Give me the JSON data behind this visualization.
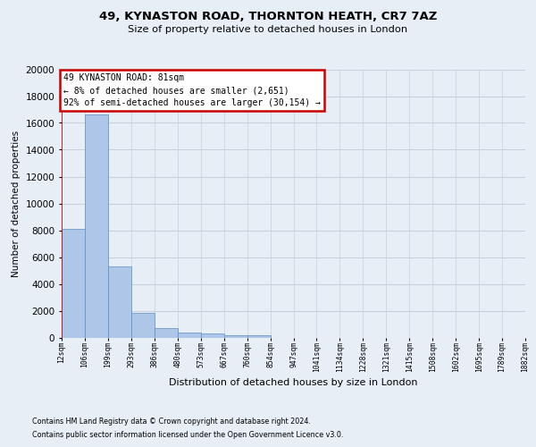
{
  "title_line1": "49, KYNASTON ROAD, THORNTON HEATH, CR7 7AZ",
  "title_line2": "Size of property relative to detached houses in London",
  "xlabel": "Distribution of detached houses by size in London",
  "ylabel": "Number of detached properties",
  "footer_line1": "Contains HM Land Registry data © Crown copyright and database right 2024.",
  "footer_line2": "Contains public sector information licensed under the Open Government Licence v3.0.",
  "annotation_line1": "49 KYNASTON ROAD: 81sqm",
  "annotation_line2": "← 8% of detached houses are smaller (2,651)",
  "annotation_line3": "92% of semi-detached houses are larger (30,154) →",
  "bar_values": [
    8100,
    16600,
    5300,
    1850,
    700,
    380,
    280,
    200,
    160,
    0,
    0,
    0,
    0,
    0,
    0,
    0,
    0,
    0,
    0,
    0
  ],
  "bin_labels": [
    "12sqm",
    "106sqm",
    "199sqm",
    "293sqm",
    "386sqm",
    "480sqm",
    "573sqm",
    "667sqm",
    "760sqm",
    "854sqm",
    "947sqm",
    "1041sqm",
    "1134sqm",
    "1228sqm",
    "1321sqm",
    "1415sqm",
    "1508sqm",
    "1602sqm",
    "1695sqm",
    "1789sqm",
    "1882sqm"
  ],
  "bar_color": "#aec6e8",
  "bar_edge_color": "#5b8ec4",
  "grid_color": "#c8d0dc",
  "background_color": "#e8eef6",
  "annotation_box_edge": "#cc0000",
  "vline_color": "#cc0000",
  "ylim": [
    0,
    20000
  ],
  "yticks": [
    0,
    2000,
    4000,
    6000,
    8000,
    10000,
    12000,
    14000,
    16000,
    18000,
    20000
  ],
  "vline_x": 0.0
}
